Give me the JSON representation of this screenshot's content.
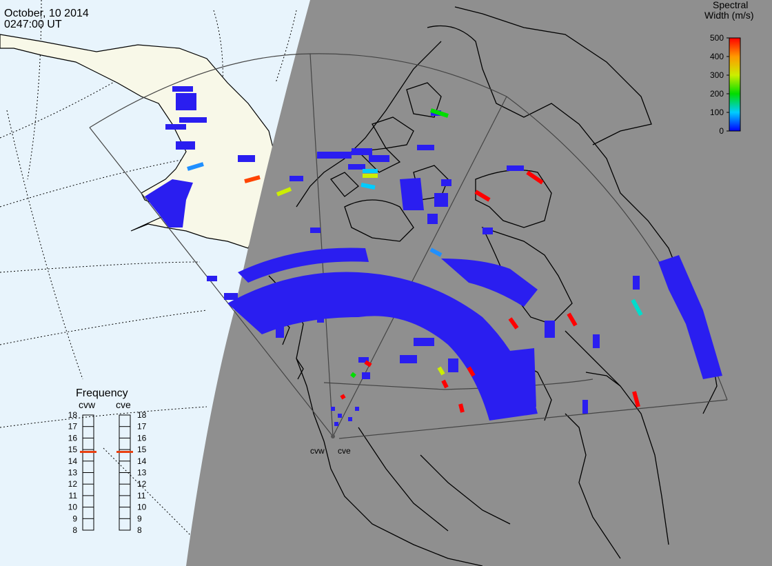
{
  "header": {
    "date": "October, 10 2014",
    "time": "0247:00 UT"
  },
  "colorbar": {
    "title_line1": "Spectral",
    "title_line2": "Width (m/s)",
    "ticks": [
      "500",
      "400",
      "300",
      "200",
      "100",
      "0"
    ]
  },
  "frequency_panel": {
    "title": "Frequency",
    "radars": [
      {
        "name": "cvw",
        "value_mhz": 14.8
      },
      {
        "name": "cve",
        "value_mhz": 14.8
      }
    ],
    "ticks": [
      "18",
      "17",
      "16",
      "15",
      "14",
      "13",
      "12",
      "11",
      "10",
      "9",
      "8"
    ]
  },
  "radar_sites": [
    {
      "name": "cvw"
    },
    {
      "name": "cve"
    }
  ],
  "colors": {
    "ocean": "#e8f4fc",
    "land_day": "#f8f8e8",
    "night_shade": "#8f8f8f",
    "echo_low": "#2a1ef0",
    "echo_high": "#ff0000",
    "freq_marker": "#e84010"
  }
}
